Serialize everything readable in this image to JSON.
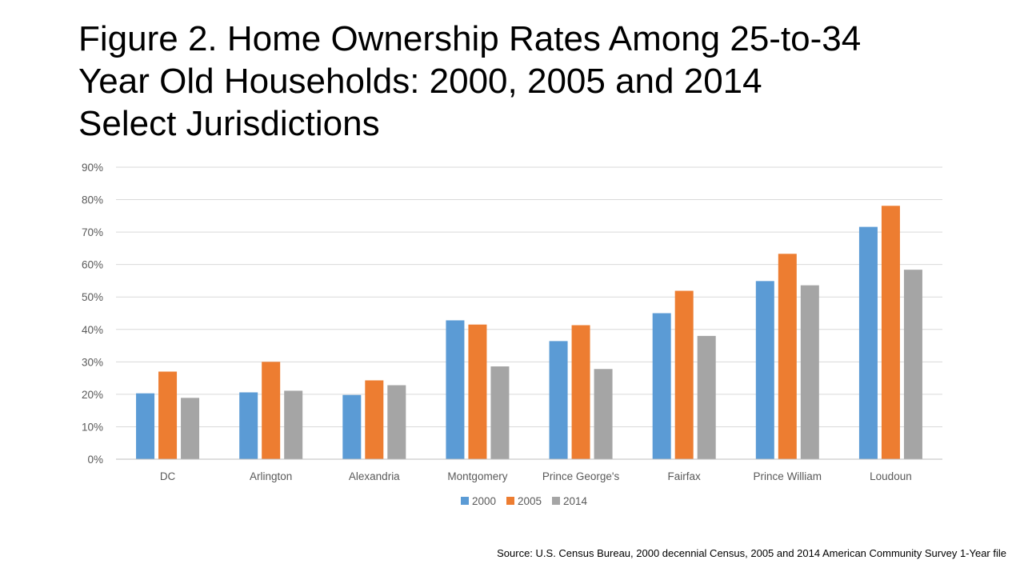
{
  "title_lines": [
    "Figure 2. Home Ownership Rates Among 25-to-34",
    "Year Old Households: 2000, 2005 and 2014",
    "Select Jurisdictions"
  ],
  "source": "Source: U.S. Census Bureau, 2000 decennial Census, 2005 and 2014 American Community  Survey 1-Year file",
  "colors": {
    "2000": "#5b9bd5",
    "2005": "#ed7d31",
    "2014": "#a5a5a5",
    "grid": "#d9d9d9",
    "axis": "#bfbfbf"
  },
  "chart_data": {
    "type": "bar",
    "title": "Figure 2. Home Ownership Rates Among 25-to-34 Year Old Households: 2000, 2005 and 2014 Select Jurisdictions",
    "xlabel": "",
    "ylabel": "",
    "ylim": [
      0,
      90
    ],
    "ytick_values": [
      0,
      10,
      20,
      30,
      40,
      50,
      60,
      70,
      80,
      90
    ],
    "ytick_labels": [
      "0%",
      "10%",
      "20%",
      "30%",
      "40%",
      "50%",
      "60%",
      "70%",
      "80%",
      "90%"
    ],
    "grid": true,
    "legend_position": "bottom",
    "categories": [
      "DC",
      "Arlington",
      "Alexandria",
      "Montgomery",
      "Prince George's",
      "Fairfax",
      "Prince William",
      "Loudoun"
    ],
    "series": [
      {
        "name": "2000",
        "values": [
          20.3,
          20.6,
          19.8,
          42.8,
          36.4,
          45.0,
          54.9,
          71.6
        ]
      },
      {
        "name": "2005",
        "values": [
          27.0,
          30.0,
          24.3,
          41.5,
          41.3,
          51.9,
          63.3,
          78.1
        ]
      },
      {
        "name": "2014",
        "values": [
          18.9,
          21.1,
          22.8,
          28.6,
          27.8,
          38.0,
          53.6,
          58.4
        ]
      }
    ]
  }
}
